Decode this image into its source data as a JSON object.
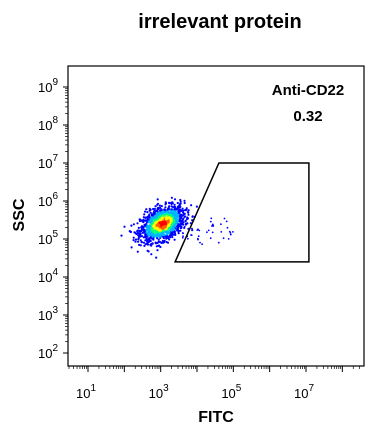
{
  "chart_data": {
    "type": "scatter",
    "title": "irrelevant protein",
    "xlabel": "FITC",
    "ylabel": "SSC",
    "x_scale": "log10",
    "y_scale": "log10",
    "xlim": [
      10,
      10000000
    ],
    "ylim": [
      100,
      1000000000
    ],
    "x_ticks": [
      {
        "base": "10",
        "exp": "1",
        "value": 10
      },
      {
        "base": "10",
        "exp": "3",
        "value": 1000
      },
      {
        "base": "10",
        "exp": "5",
        "value": 100000
      },
      {
        "base": "10",
        "exp": "7",
        "value": 10000000
      }
    ],
    "y_ticks": [
      {
        "base": "10",
        "exp": "2",
        "value": 100
      },
      {
        "base": "10",
        "exp": "3",
        "value": 1000
      },
      {
        "base": "10",
        "exp": "4",
        "value": 10000
      },
      {
        "base": "10",
        "exp": "5",
        "value": 100000
      },
      {
        "base": "10",
        "exp": "6",
        "value": 1000000
      },
      {
        "base": "10",
        "exp": "7",
        "value": 10000000
      },
      {
        "base": "10",
        "exp": "8",
        "value": 100000000
      },
      {
        "base": "10",
        "exp": "9",
        "value": 1000000000
      }
    ],
    "gate": {
      "label": "Anti-CD22",
      "percent": "0.32",
      "polygon": [
        [
          2500,
          25000
        ],
        [
          40000,
          10000000
        ],
        [
          12000000,
          10000000
        ],
        [
          12000000,
          25000
        ]
      ]
    },
    "population": {
      "center_log": [
        3.05,
        5.4
      ],
      "spread_log": [
        0.3,
        0.26
      ],
      "density_colors": [
        "#0000ff",
        "#00b4ff",
        "#00ff7f",
        "#ffff00",
        "#ff6000",
        "#ff0000"
      ]
    }
  }
}
